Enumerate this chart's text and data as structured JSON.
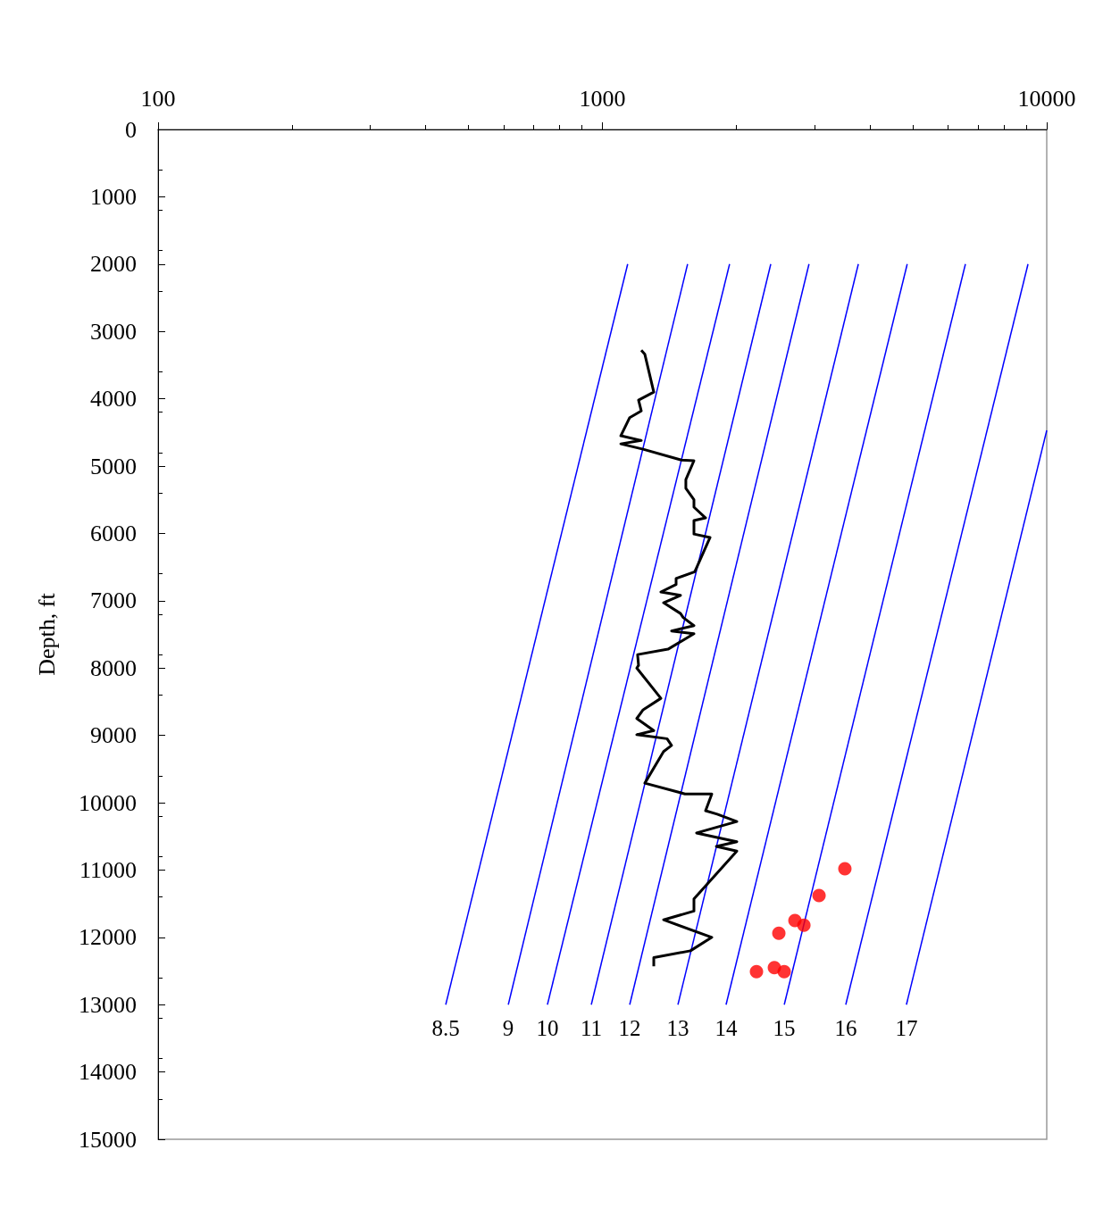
{
  "chart_data": {
    "type": "line",
    "ylabel": "Depth, ft",
    "log": "x",
    "grid": false,
    "legend": false,
    "xlim": [
      100,
      10000
    ],
    "xticks": [
      100,
      1000,
      10000
    ],
    "ylim": [
      15000,
      0
    ],
    "yticks": [
      0,
      1000,
      2000,
      3000,
      4000,
      5000,
      6000,
      7000,
      8000,
      9000,
      10000,
      11000,
      12000,
      13000,
      14000,
      15000
    ],
    "series": [
      {
        "name": "8.5",
        "color": "#0000ff",
        "marker": "none",
        "x": [
          1140,
          444
        ],
        "values": [
          2000,
          13000
        ]
      },
      {
        "name": "9",
        "color": "#0000ff",
        "marker": "none",
        "x": [
          1555,
          614
        ],
        "values": [
          2000,
          13000
        ]
      },
      {
        "name": "10",
        "color": "#0000ff",
        "marker": "none",
        "x": [
          1933,
          752
        ],
        "values": [
          2000,
          13000
        ]
      },
      {
        "name": "11",
        "color": "#0000ff",
        "marker": "none",
        "x": [
          2393,
          944
        ],
        "values": [
          2000,
          13000
        ]
      },
      {
        "name": "12",
        "color": "#0000ff",
        "marker": "none",
        "x": [
          2917,
          1152
        ],
        "values": [
          2000,
          13000
        ]
      },
      {
        "name": "13",
        "color": "#0000ff",
        "marker": "none",
        "x": [
          3767,
          1479
        ],
        "values": [
          2000,
          13000
        ]
      },
      {
        "name": "14",
        "color": "#0000ff",
        "marker": "none",
        "x": [
          4853,
          1898
        ],
        "values": [
          2000,
          13000
        ]
      },
      {
        "name": "15",
        "color": "#0000ff",
        "marker": "none",
        "x": [
          6561,
          2566
        ],
        "values": [
          2000,
          13000
        ]
      },
      {
        "name": "16",
        "color": "#0000ff",
        "marker": "none",
        "x": [
          9076,
          3529
        ],
        "values": [
          2000,
          13000
        ]
      },
      {
        "name": "17",
        "color": "#0000ff",
        "marker": "none",
        "x": [
          10000,
          4833
        ],
        "values": [
          4470,
          13000
        ]
      },
      {
        "color": "#000000",
        "marker": "none",
        "x": [
          1223,
          1246,
          1305,
          1206,
          1223,
          1152,
          1100,
          1223,
          1100,
          1235,
          1506,
          1607,
          1541,
          1541,
          1607,
          1607,
          1707,
          1607,
          1607,
          1747,
          1614,
          1465,
          1465,
          1354,
          1499,
          1373,
          1499,
          1520,
          1607,
          1431,
          1607,
          1405,
          1200,
          1206,
          1195,
          1354,
          1235,
          1195,
          1305,
          1195,
          1398,
          1431,
          1373,
          1246,
          1534,
          1763,
          1707,
          1813,
          2007,
          1629,
          2007,
          1805,
          2007,
          1607,
          1607,
          1373,
          1763,
          1578,
          1305,
          1305
        ],
        "values": [
          3280,
          3340,
          3900,
          4020,
          4180,
          4280,
          4550,
          4620,
          4670,
          4750,
          4910,
          4920,
          5200,
          5330,
          5500,
          5610,
          5770,
          5810,
          6010,
          6060,
          6570,
          6670,
          6760,
          6870,
          6920,
          7030,
          7190,
          7250,
          7370,
          7450,
          7490,
          7720,
          7800,
          7960,
          8000,
          8450,
          8620,
          8750,
          8930,
          8990,
          9050,
          9150,
          9240,
          9710,
          9870,
          9870,
          10120,
          10170,
          10280,
          10450,
          10580,
          10650,
          10720,
          11430,
          11610,
          11740,
          12000,
          12200,
          12300,
          12430
        ]
      },
      {
        "type": "scatter",
        "color": "#ff0000",
        "marker": "circle",
        "x": [
          3513,
          3073,
          2712,
          2841,
          2495,
          2222,
          2438,
          2565
        ],
        "values": [
          10980,
          11380,
          11750,
          11820,
          11940,
          12510,
          12450,
          12510
        ]
      }
    ]
  }
}
